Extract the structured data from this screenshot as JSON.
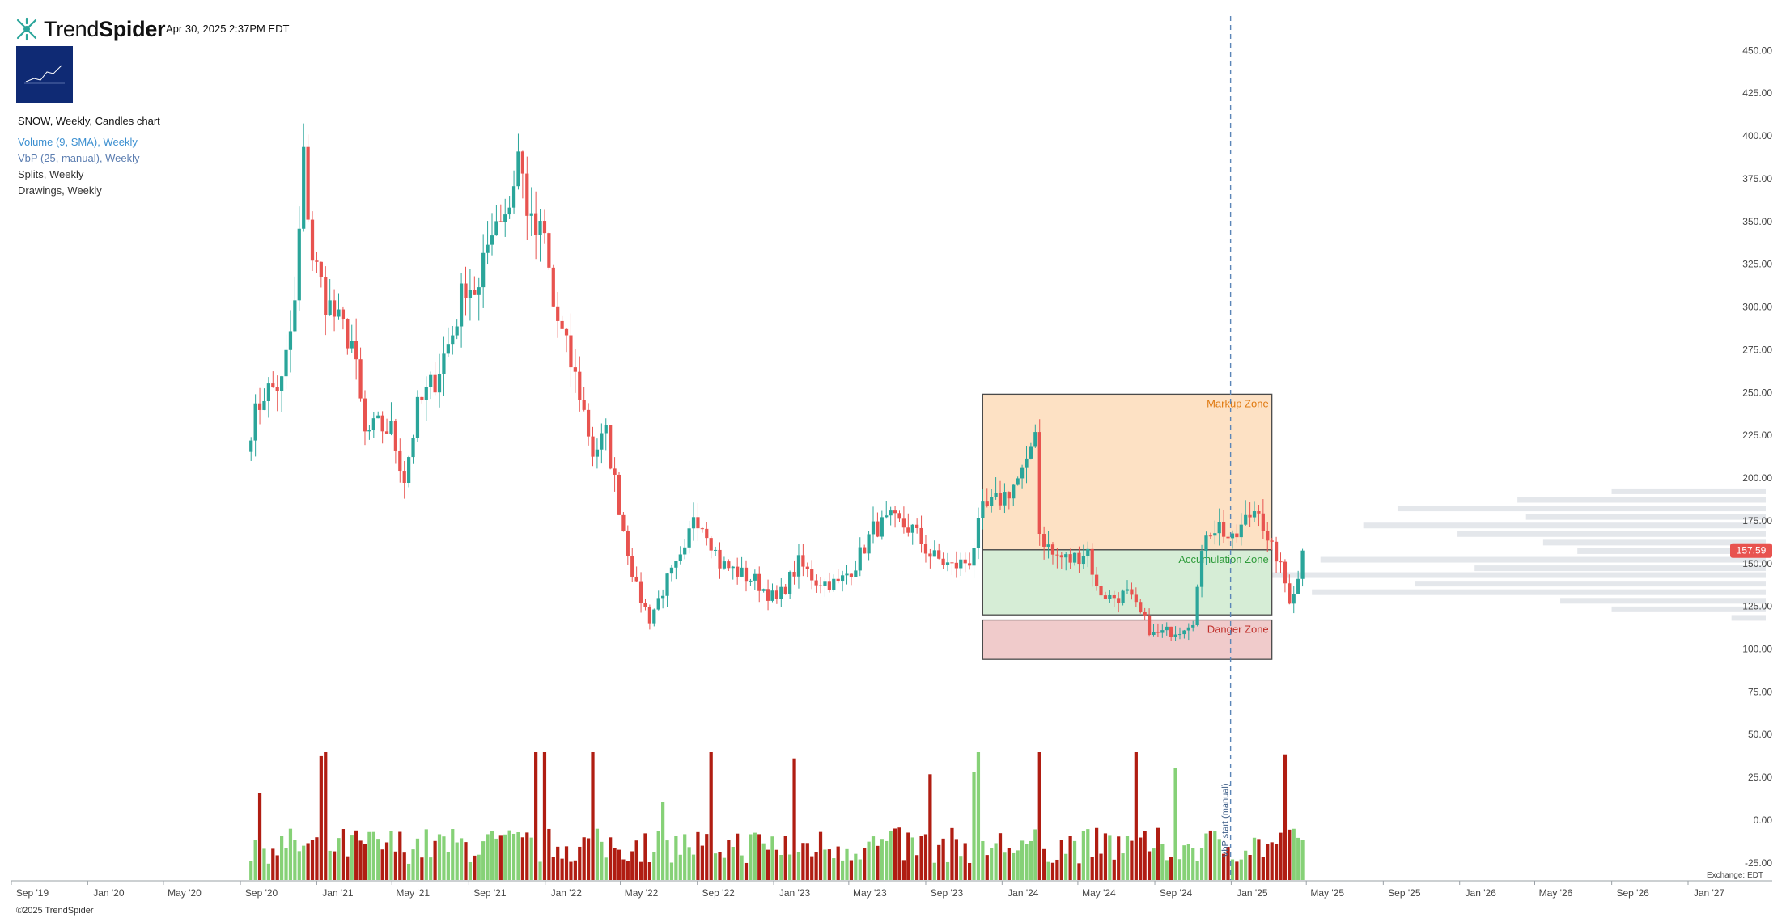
{
  "header": {
    "brand_light": "Trend",
    "brand_bold": "Spider",
    "timestamp": "Apr 30, 2025 2:37PM EDT"
  },
  "legend": {
    "title": "SNOW, Weekly, Candles chart",
    "volume": "Volume (9, SMA), Weekly",
    "vbp": "VbP (25, manual), Weekly",
    "splits": "Splits, Weekly",
    "drawings": "Drawings, Weekly"
  },
  "footer": {
    "copyright": "©2025 TrendSpider",
    "exchange": "Exchange: EDT"
  },
  "colors": {
    "up": "#2aa59a",
    "down": "#e8534f",
    "vol_up": "#86d177",
    "vol_down": "#b01d12",
    "markup_fill": "#fde1c4",
    "accum_fill": "#d6edd6",
    "danger_fill": "#f0cbcb",
    "vbp_bar": "#dfe3e7",
    "price_tag": "#e8534f"
  },
  "chart_data": {
    "type": "candlestick",
    "ticker": "SNOW",
    "interval": "Weekly",
    "x_ticks": [
      "Sep '19",
      "Jan '20",
      "May '20",
      "Sep '20",
      "Jan '21",
      "May '21",
      "Sep '21",
      "Jan '22",
      "May '22",
      "Sep '22",
      "Jan '23",
      "May '23",
      "Sep '23",
      "Jan '24",
      "May '24",
      "Sep '24",
      "Jan '25",
      "May '25",
      "Sep '25",
      "Jan '26",
      "May '26",
      "Sep '26",
      "Jan '27"
    ],
    "y_ticks": [
      "-25.00",
      "0.00",
      "25.00",
      "50.00",
      "75.00",
      "100.00",
      "125.00",
      "150.00",
      "175.00",
      "200.00",
      "225.00",
      "250.00",
      "275.00",
      "300.00",
      "325.00",
      "350.00",
      "375.00",
      "400.00",
      "425.00",
      "450.00"
    ],
    "ylim": [
      -35,
      470
    ],
    "last_price": "157.59",
    "price_path": [
      [
        "2020-09-18",
        230
      ],
      [
        "2020-10-09",
        250
      ],
      [
        "2020-11-06",
        255
      ],
      [
        "2020-11-27",
        300
      ],
      [
        "2020-12-11",
        385
      ],
      [
        "2020-12-25",
        330
      ],
      [
        "2021-01-15",
        305
      ],
      [
        "2021-02-05",
        290
      ],
      [
        "2021-02-26",
        280
      ],
      [
        "2021-03-19",
        225
      ],
      [
        "2021-04-09",
        230
      ],
      [
        "2021-04-30",
        228
      ],
      [
        "2021-05-21",
        200
      ],
      [
        "2021-06-11",
        240
      ],
      [
        "2021-07-09",
        258
      ],
      [
        "2021-08-06",
        285
      ],
      [
        "2021-08-27",
        315
      ],
      [
        "2021-09-17",
        308
      ],
      [
        "2021-10-08",
        350
      ],
      [
        "2021-11-05",
        360
      ],
      [
        "2021-11-19",
        390
      ],
      [
        "2021-12-10",
        345
      ],
      [
        "2021-12-31",
        340
      ],
      [
        "2022-01-14",
        300
      ],
      [
        "2022-02-04",
        275
      ],
      [
        "2022-02-25",
        250
      ],
      [
        "2022-03-18",
        215
      ],
      [
        "2022-04-08",
        225
      ],
      [
        "2022-05-06",
        170
      ],
      [
        "2022-05-27",
        135
      ],
      [
        "2022-06-17",
        118
      ],
      [
        "2022-07-15",
        140
      ],
      [
        "2022-08-12",
        155
      ],
      [
        "2022-08-26",
        180
      ],
      [
        "2022-09-16",
        170
      ],
      [
        "2022-10-07",
        150
      ],
      [
        "2022-11-04",
        145
      ],
      [
        "2022-12-02",
        140
      ],
      [
        "2023-01-06",
        128
      ],
      [
        "2023-02-10",
        150
      ],
      [
        "2023-03-10",
        140
      ],
      [
        "2023-04-14",
        138
      ],
      [
        "2023-05-12",
        150
      ],
      [
        "2023-06-09",
        170
      ],
      [
        "2023-07-07",
        175
      ],
      [
        "2023-08-11",
        170
      ],
      [
        "2023-09-08",
        155
      ],
      [
        "2023-10-13",
        148
      ],
      [
        "2023-11-10",
        152
      ],
      [
        "2023-12-01",
        180
      ],
      [
        "2024-01-05",
        190
      ],
      [
        "2024-02-09",
        205
      ],
      [
        "2024-02-23",
        232
      ],
      [
        "2024-03-01",
        168
      ],
      [
        "2024-03-22",
        155
      ],
      [
        "2024-04-19",
        152
      ],
      [
        "2024-05-17",
        158
      ],
      [
        "2024-05-31",
        135
      ],
      [
        "2024-06-21",
        130
      ],
      [
        "2024-07-19",
        132
      ],
      [
        "2024-08-09",
        120
      ],
      [
        "2024-08-30",
        108
      ],
      [
        "2024-09-20",
        110
      ],
      [
        "2024-10-11",
        112
      ],
      [
        "2024-11-01",
        118
      ],
      [
        "2024-11-22",
        170
      ],
      [
        "2024-12-13",
        172
      ],
      [
        "2025-01-03",
        162
      ],
      [
        "2025-01-24",
        175
      ],
      [
        "2025-02-14",
        185
      ],
      [
        "2025-02-28",
        160
      ],
      [
        "2025-03-14",
        155
      ],
      [
        "2025-04-04",
        130
      ],
      [
        "2025-04-18",
        140
      ],
      [
        "2025-04-30",
        157.59
      ]
    ],
    "zones": [
      {
        "label": "Markup Zone",
        "y_top": 249,
        "y_bottom": 158,
        "x_start": "2023-12-01",
        "x_end": "2025-03-07"
      },
      {
        "label": "Accumulation Zone",
        "y_top": 158,
        "y_bottom": 120,
        "x_start": "2023-12-01",
        "x_end": "2025-03-07"
      },
      {
        "label": "Danger Zone",
        "y_top": 117,
        "y_bottom": 94,
        "x_start": "2023-12-01",
        "x_end": "2025-03-07"
      }
    ],
    "vbp_start_label": "VbP start (manual)",
    "vbp_start_date": "2024-12-31",
    "vbp_profile": [
      [
        192,
        3.6
      ],
      [
        187,
        5.8
      ],
      [
        182,
        8.6
      ],
      [
        177,
        5.6
      ],
      [
        172,
        9.4
      ],
      [
        167,
        7.2
      ],
      [
        162,
        5.2
      ],
      [
        157,
        4.4
      ],
      [
        152,
        10.4
      ],
      [
        147,
        6.8
      ],
      [
        143,
        12.0
      ],
      [
        138,
        8.2
      ],
      [
        133,
        10.6
      ],
      [
        128,
        4.8
      ],
      [
        123,
        3.6
      ],
      [
        118,
        0.8
      ]
    ]
  }
}
